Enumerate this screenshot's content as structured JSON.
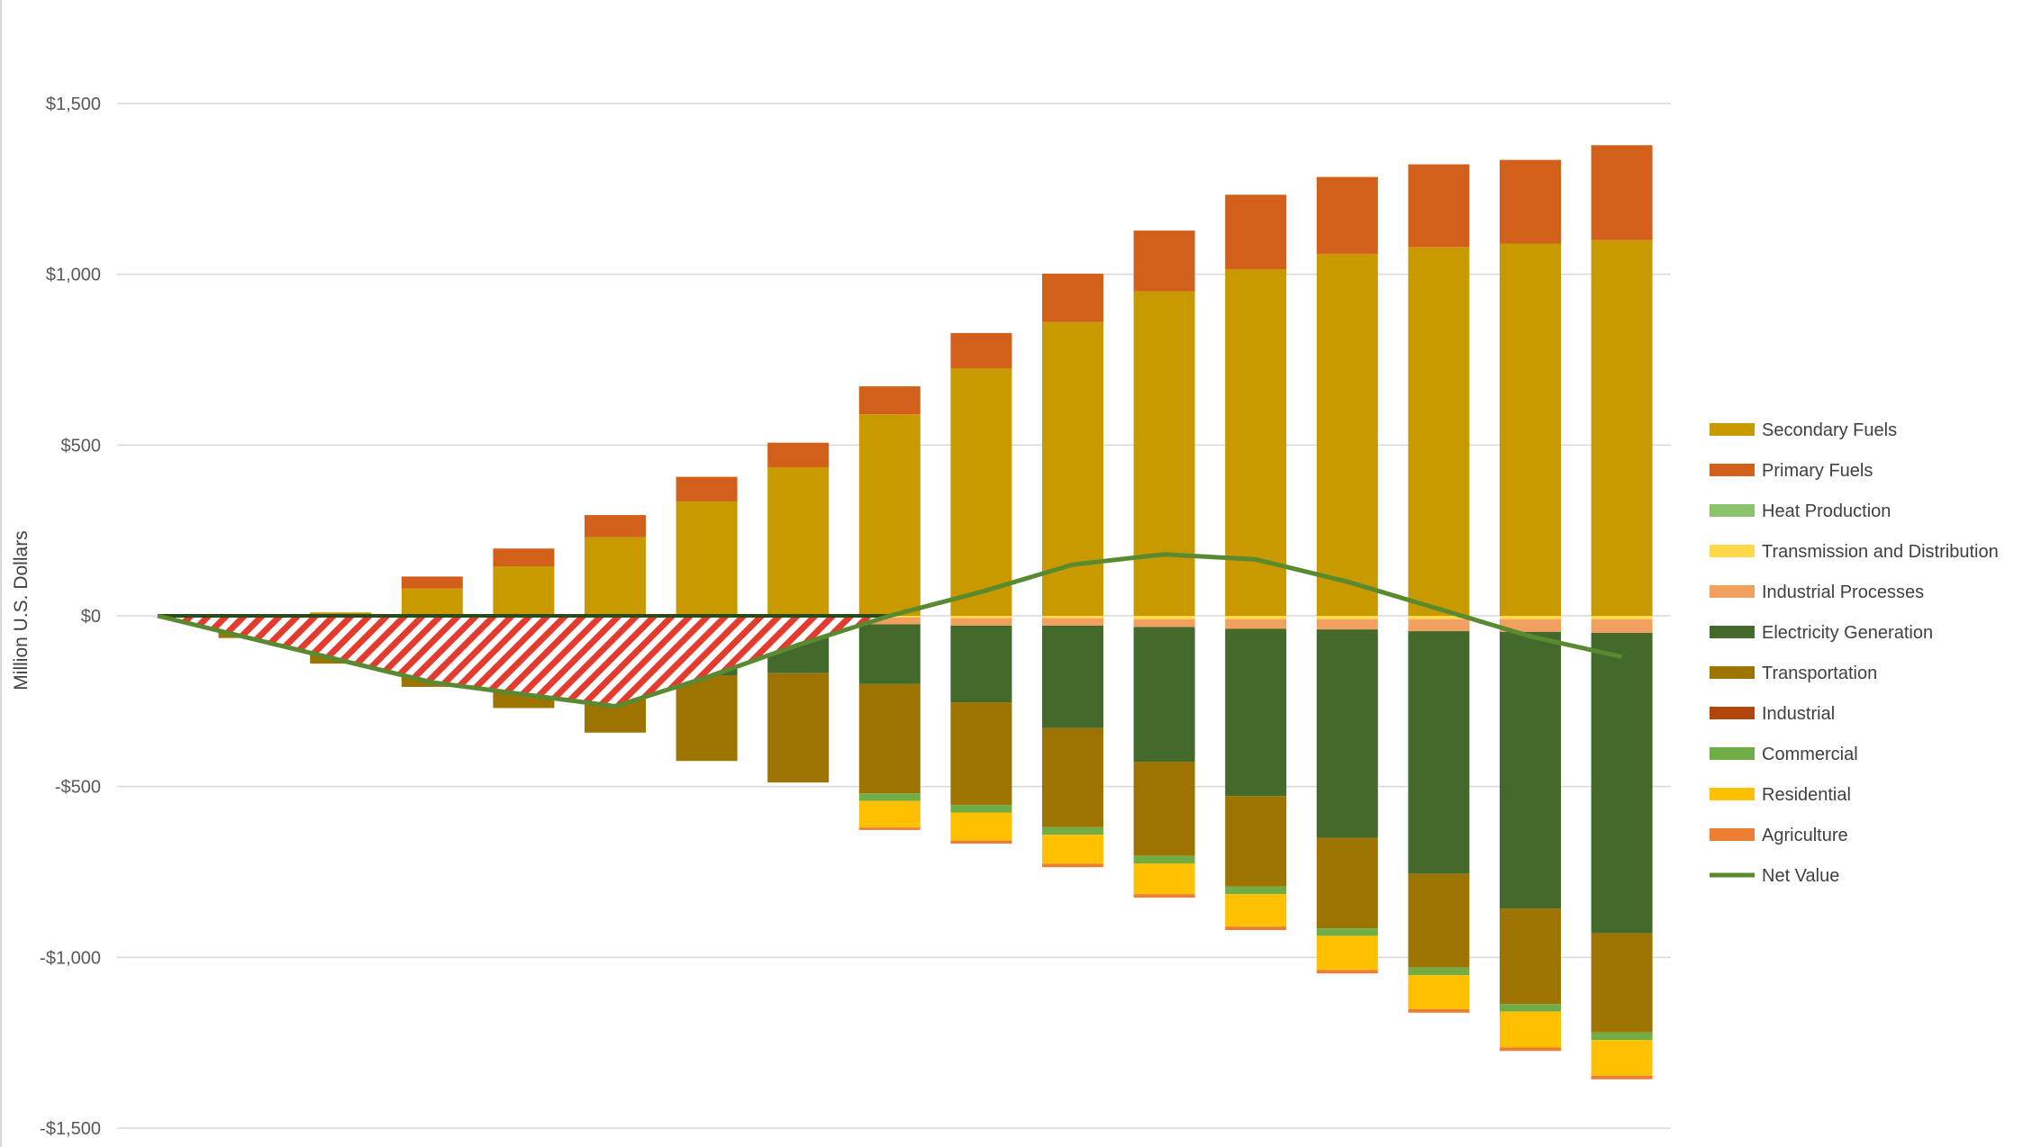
{
  "chart_data": {
    "type": "bar",
    "stacked": true,
    "title": "",
    "xlabel": "",
    "ylabel": "Million U.S. Dollars",
    "ylim": [
      -1500,
      1500
    ],
    "yticks": [
      "$1,500",
      "$1,000",
      "$500",
      "$0",
      "-$500",
      "-$1,000",
      "-$1,500"
    ],
    "ytick_values": [
      1500,
      1000,
      500,
      0,
      -500,
      -1000,
      -1500
    ],
    "categories": [
      "",
      "",
      "",
      "",
      "",
      "",
      "",
      "",
      "",
      "",
      "",
      "",
      "",
      "",
      "",
      "",
      ""
    ],
    "grid": true,
    "legend_position": "right",
    "series": [
      {
        "name": "Secondary Fuels",
        "color": "#C99A00",
        "values": [
          0,
          0,
          10,
          80,
          145,
          230,
          335,
          435,
          590,
          725,
          860,
          950,
          1015,
          1060,
          1080,
          1090,
          1100
        ]
      },
      {
        "name": "Primary Fuels",
        "color": "#D2601A",
        "values": [
          0,
          0,
          0,
          35,
          52,
          65,
          72,
          72,
          82,
          103,
          142,
          178,
          218,
          225,
          242,
          245,
          278
        ]
      },
      {
        "name": "Heat Production",
        "color": "#8BC46A",
        "values": [
          0,
          0,
          0,
          0,
          0,
          0,
          0,
          0,
          0,
          0,
          0,
          0,
          0,
          0,
          0,
          0,
          0
        ]
      },
      {
        "name": "Transmission and Distribution",
        "color": "#FFD94A",
        "values": [
          0,
          0,
          0,
          0,
          0,
          0,
          0,
          0,
          -5,
          -7,
          -7,
          -10,
          -10,
          -10,
          -10,
          -10,
          -10
        ]
      },
      {
        "name": "Industrial Processes",
        "color": "#F2A05F",
        "values": [
          0,
          0,
          -5,
          -8,
          -10,
          -12,
          -15,
          -18,
          -20,
          -22,
          -22,
          -23,
          -28,
          -30,
          -35,
          -37,
          -40
        ]
      },
      {
        "name": "Electricity Generation",
        "color": "#436A2A",
        "values": [
          0,
          0,
          -30,
          -70,
          -90,
          -120,
          -160,
          -150,
          -175,
          -225,
          -300,
          -395,
          -490,
          -610,
          -710,
          -810,
          -880
        ]
      },
      {
        "name": "Transportation",
        "color": "#9E7400",
        "values": [
          0,
          -65,
          -105,
          -130,
          -170,
          -210,
          -250,
          -320,
          -320,
          -300,
          -290,
          -275,
          -265,
          -265,
          -275,
          -280,
          -290
        ]
      },
      {
        "name": "Industrial",
        "color": "#B2460C",
        "values": [
          0,
          0,
          0,
          0,
          0,
          0,
          0,
          0,
          0,
          0,
          0,
          0,
          0,
          0,
          0,
          0,
          0
        ]
      },
      {
        "name": "Commercial",
        "color": "#70AD47",
        "values": [
          0,
          0,
          0,
          0,
          0,
          0,
          0,
          0,
          -22,
          -22,
          -22,
          -22,
          -22,
          -22,
          -22,
          -22,
          -22
        ]
      },
      {
        "name": "Residential",
        "color": "#FFC000",
        "values": [
          0,
          0,
          0,
          0,
          0,
          0,
          0,
          0,
          -78,
          -82,
          -85,
          -90,
          -95,
          -100,
          -100,
          -105,
          -105
        ]
      },
      {
        "name": "Agriculture",
        "color": "#ED7D31",
        "values": [
          0,
          0,
          0,
          0,
          0,
          0,
          0,
          0,
          -7,
          -9,
          -10,
          -10,
          -10,
          -10,
          -10,
          -10,
          -10
        ]
      }
    ],
    "net_value": {
      "name": "Net Value",
      "color": "#5A8A2F",
      "values": [
        0,
        -65,
        -130,
        -195,
        -230,
        -265,
        -180,
        -85,
        0,
        70,
        150,
        180,
        165,
        100,
        20,
        -60,
        -120
      ]
    },
    "shaded_region": {
      "fill": "#E33B2E",
      "pattern": "diagonal-hatch",
      "outline": "#2B4A1A"
    }
  }
}
